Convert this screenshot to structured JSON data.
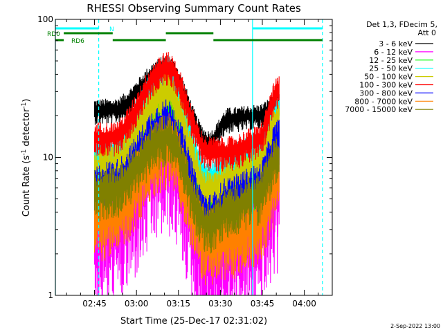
{
  "chart_data": {
    "type": "line",
    "title": "RHESSI Observing Summary Count Rates",
    "xlabel": "Start Time (25-Dec-17 02:31:02)",
    "ylabel_main": "Count Rate (s",
    "ylabel_sup1": "-1",
    "ylabel_mid": " detector",
    "ylabel_sup2": "-1",
    "ylabel_end": ")",
    "yscale": "log",
    "ylim": [
      1,
      100
    ],
    "xlim_minutes_after_0231": [
      0,
      99
    ],
    "x_tick_labels": [
      "02:45",
      "03:00",
      "03:15",
      "03:30",
      "03:45",
      "04:00"
    ],
    "x_tick_minutes": [
      14,
      29,
      44,
      59,
      74,
      89
    ],
    "y_tick_labels": [
      "1",
      "10",
      "100"
    ],
    "y_tick_values": [
      1,
      10,
      100
    ],
    "legend_header": [
      "Det 1,3, FDecim 5,",
      "Att 0"
    ],
    "data_start_minute": 14,
    "data_end_minute": 80,
    "peak_minute": 40,
    "series": [
      {
        "name": "3 - 6 keV",
        "color": "#000000",
        "levels": [
          22,
          22,
          45,
          13,
          19,
          20,
          24
        ],
        "noise": 0.06
      },
      {
        "name": "6 - 12 keV",
        "color": "#ff00ff",
        "levels": [
          3.2,
          3.4,
          11,
          2.0,
          2.3,
          3.0,
          6
        ],
        "noise": 0.35
      },
      {
        "name": "12 - 25 keV",
        "color": "#00ff00",
        "levels": [
          7,
          7.5,
          27,
          4.0,
          5.0,
          6.5,
          15
        ],
        "noise": 0.12
      },
      {
        "name": "25 - 50 keV",
        "color": "#00ffff",
        "levels": [
          10,
          11,
          40,
          7,
          9,
          11,
          22
        ],
        "noise": 0.1
      },
      {
        "name": "50 - 100 keV",
        "color": "#cccc00",
        "levels": [
          8,
          8.5,
          30,
          5.5,
          7,
          8.5,
          18
        ],
        "noise": 0.12
      },
      {
        "name": "100 - 300 keV",
        "color": "#ff0000",
        "levels": [
          14,
          14,
          45,
          11,
          11,
          13,
          30
        ],
        "noise": 0.08
      },
      {
        "name": "300 - 800 keV",
        "color": "#0000ff",
        "levels": [
          6,
          6.5,
          18,
          3.7,
          5,
          6,
          13
        ],
        "noise": 0.12
      },
      {
        "name": "800 - 7000 keV",
        "color": "#ff8000",
        "levels": [
          3.6,
          3.8,
          12,
          2.4,
          2.6,
          3.4,
          7
        ],
        "noise": 0.18
      },
      {
        "name": "7000 - 15000 keV",
        "color": "#808000",
        "levels": [
          5.5,
          5.8,
          14,
          3.2,
          4.2,
          5.2,
          10
        ],
        "noise": 0.12
      }
    ],
    "level_minutes": [
      14,
      20,
      40,
      55,
      62,
      72,
      80
    ],
    "flags": [
      {
        "label": "N",
        "color": "#00ffff",
        "segments": [
          [
            0,
            15.5
          ],
          [
            70.5,
            95.5
          ]
        ],
        "level": 0
      },
      {
        "label": "RD0",
        "color": "#008000",
        "segments": [
          [
            3,
            20.5
          ],
          [
            39.5,
            56.5
          ]
        ],
        "level": 1
      },
      {
        "label": "RD6",
        "color": "#008000",
        "segments": [
          [
            0,
            3
          ],
          [
            20.5,
            39.5
          ],
          [
            56.5,
            95.5
          ]
        ],
        "level": 2
      }
    ],
    "vlines": [
      {
        "minute": 0,
        "color": "#00ffff",
        "style": "solid"
      },
      {
        "minute": 15.5,
        "color": "#00ffff",
        "style": "dashed"
      },
      {
        "minute": 70.5,
        "color": "#00ffff",
        "style": "solid"
      },
      {
        "minute": 95.5,
        "color": "#00ffff",
        "style": "dashed"
      }
    ]
  },
  "footer": {
    "date_stamp": "2-Sep-2022 13:00"
  }
}
